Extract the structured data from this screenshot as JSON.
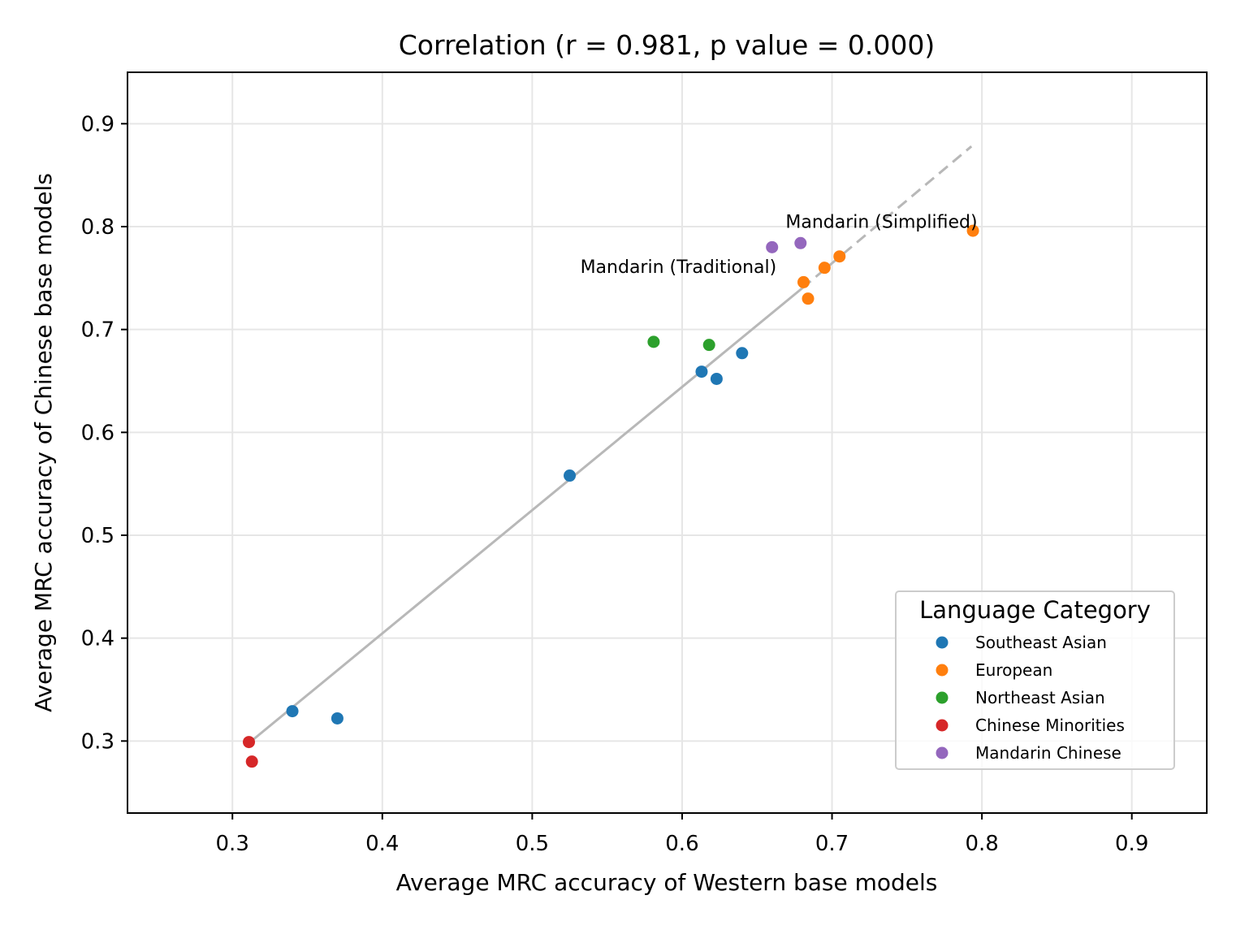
{
  "chart_data": {
    "type": "scatter",
    "title": "Correlation (r = 0.981, p value = 0.000)",
    "xlabel": "Average MRC accuracy of Western base models",
    "ylabel": "Average MRC accuracy of Chinese base models",
    "xlim": [
      0.23,
      0.95
    ],
    "ylim": [
      0.23,
      0.95
    ],
    "xticks": [
      0.3,
      0.4,
      0.5,
      0.6,
      0.7,
      0.8,
      0.9
    ],
    "yticks": [
      0.3,
      0.4,
      0.5,
      0.6,
      0.7,
      0.8,
      0.9
    ],
    "xtick_labels": [
      "0.3",
      "0.4",
      "0.5",
      "0.6",
      "0.7",
      "0.8",
      "0.9"
    ],
    "ytick_labels": [
      "0.3",
      "0.4",
      "0.5",
      "0.6",
      "0.7",
      "0.8",
      "0.9"
    ],
    "grid": true,
    "legend": {
      "title": "Language Category",
      "placement": "lower-right"
    },
    "fit_line": {
      "color": "#b8b8b8",
      "solid": [
        [
          0.311,
          0.298
        ],
        [
          0.68,
          0.74
        ]
      ],
      "dashed": [
        [
          0.68,
          0.74
        ],
        [
          0.793,
          0.878
        ]
      ]
    },
    "series": [
      {
        "name": "Southeast Asian",
        "color": "#1f77b4",
        "points": [
          [
            0.34,
            0.329
          ],
          [
            0.37,
            0.322
          ],
          [
            0.525,
            0.558
          ],
          [
            0.613,
            0.659
          ],
          [
            0.623,
            0.652
          ],
          [
            0.64,
            0.677
          ]
        ]
      },
      {
        "name": "European",
        "color": "#ff7f0e",
        "points": [
          [
            0.681,
            0.746
          ],
          [
            0.684,
            0.73
          ],
          [
            0.695,
            0.76
          ],
          [
            0.705,
            0.771
          ],
          [
            0.794,
            0.796
          ]
        ]
      },
      {
        "name": "Northeast Asian",
        "color": "#2ca02c",
        "points": [
          [
            0.581,
            0.688
          ],
          [
            0.618,
            0.685
          ]
        ]
      },
      {
        "name": "Chinese Minorities",
        "color": "#d62728",
        "points": [
          [
            0.311,
            0.299
          ],
          [
            0.313,
            0.28
          ]
        ]
      },
      {
        "name": "Mandarin Chinese",
        "color": "#9467bd",
        "points": [
          [
            0.66,
            0.78
          ],
          [
            0.679,
            0.784
          ]
        ]
      }
    ],
    "annotations": [
      {
        "text": "Mandarin (Simplified)",
        "x": 0.733,
        "y": 0.799,
        "anchor": "middle"
      },
      {
        "text": "Mandarin (Traditional)",
        "x": 0.663,
        "y": 0.755,
        "anchor": "end"
      }
    ]
  }
}
